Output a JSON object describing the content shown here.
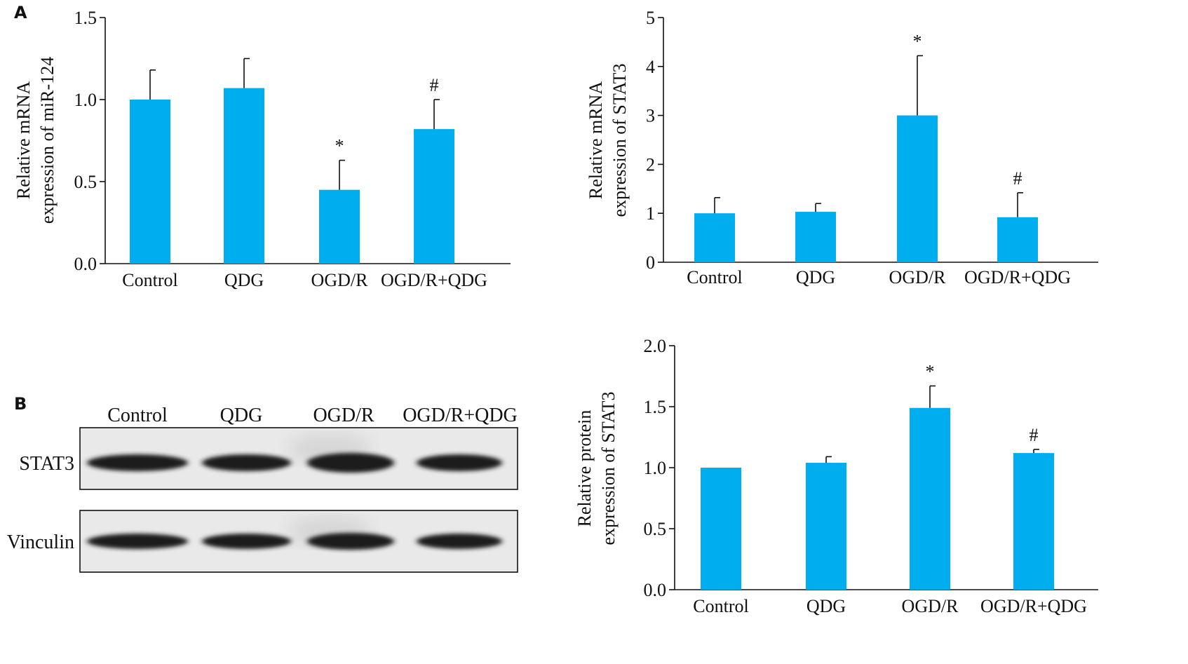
{
  "panels": {
    "a": "A",
    "b": "B"
  },
  "chart_data": [
    {
      "type": "bar",
      "categories": [
        "Control",
        "QDG",
        "OGD/R",
        "OGD/R+QDG"
      ],
      "values": [
        1.0,
        1.07,
        0.45,
        0.82
      ],
      "errors": [
        0.18,
        0.18,
        0.18,
        0.18
      ],
      "annotations": [
        "",
        "",
        "*",
        "#"
      ],
      "ylabel": [
        "Relative mRNA",
        "expression of miR-124"
      ],
      "ylim": [
        0,
        1.5
      ],
      "yticks": [
        "0.0",
        "0.5",
        "1.0",
        "1.5"
      ],
      "ytick_values": [
        0,
        0.5,
        1.0,
        1.5
      ],
      "color": "#00AEEF"
    },
    {
      "type": "bar",
      "categories": [
        "Control",
        "QDG",
        "OGD/R",
        "OGD/R+QDG"
      ],
      "values": [
        1.0,
        1.03,
        3.0,
        0.92
      ],
      "errors": [
        0.32,
        0.17,
        1.22,
        0.5
      ],
      "annotations": [
        "",
        "",
        "*",
        "#"
      ],
      "ylabel": [
        "Relative mRNA",
        "expression of STAT3"
      ],
      "ylim": [
        0,
        5
      ],
      "yticks": [
        "0",
        "1",
        "2",
        "3",
        "4",
        "5"
      ],
      "ytick_values": [
        0,
        1,
        2,
        3,
        4,
        5
      ],
      "color": "#00AEEF"
    },
    {
      "type": "bar",
      "categories": [
        "Control",
        "QDG",
        "OGD/R",
        "OGD/R+QDG"
      ],
      "values": [
        1.0,
        1.04,
        1.49,
        1.12
      ],
      "errors": [
        0.0,
        0.05,
        0.18,
        0.03
      ],
      "annotations": [
        "",
        "",
        "*",
        "#"
      ],
      "ylabel": [
        "Relative protein",
        "expression of STAT3"
      ],
      "ylim": [
        0,
        2.0
      ],
      "yticks": [
        "0.0",
        "0.5",
        "1.0",
        "1.5",
        "2.0"
      ],
      "ytick_values": [
        0,
        0.5,
        1.0,
        1.5,
        2.0
      ],
      "color": "#00AEEF"
    }
  ],
  "blot": {
    "lanes": [
      "Control",
      "QDG",
      "OGD/R",
      "OGD/R+QDG"
    ],
    "rows": [
      "STAT3",
      "Vinculin"
    ]
  }
}
